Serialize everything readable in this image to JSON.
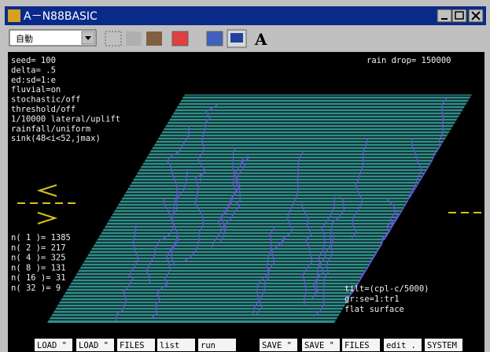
{
  "window": {
    "title": "A－N88BASIC"
  },
  "toolbar": {
    "mode": "自動",
    "font_icon": "A"
  },
  "screen": {
    "params": [
      "seed=   100",
      "delta= .5",
      "ed:sd=1:e",
      "fluvial=on",
      "stochastic/off",
      "threshold/off",
      "1/10000 lateral/uplift",
      "rainfall/uniform",
      "sink(48<i<52,jmax)"
    ],
    "rain_drop": "rain drop= 150000",
    "counts": [
      "n( 1 )= 1385",
      "n( 2 )= 217",
      "n( 4 )= 325",
      "n( 8 )= 131",
      "n( 16 )= 31",
      "n( 32 )= 9"
    ],
    "notes": [
      "tilt=(cpl-c/5000)",
      "gr:se=1:tr1",
      "flat surface"
    ]
  },
  "function_keys": [
    "LOAD \"",
    "LOAD \"",
    "FILES",
    "list",
    "run",
    "SAVE \"",
    "SAVE \"",
    "FILES",
    "edit .",
    "SYSTEM"
  ]
}
